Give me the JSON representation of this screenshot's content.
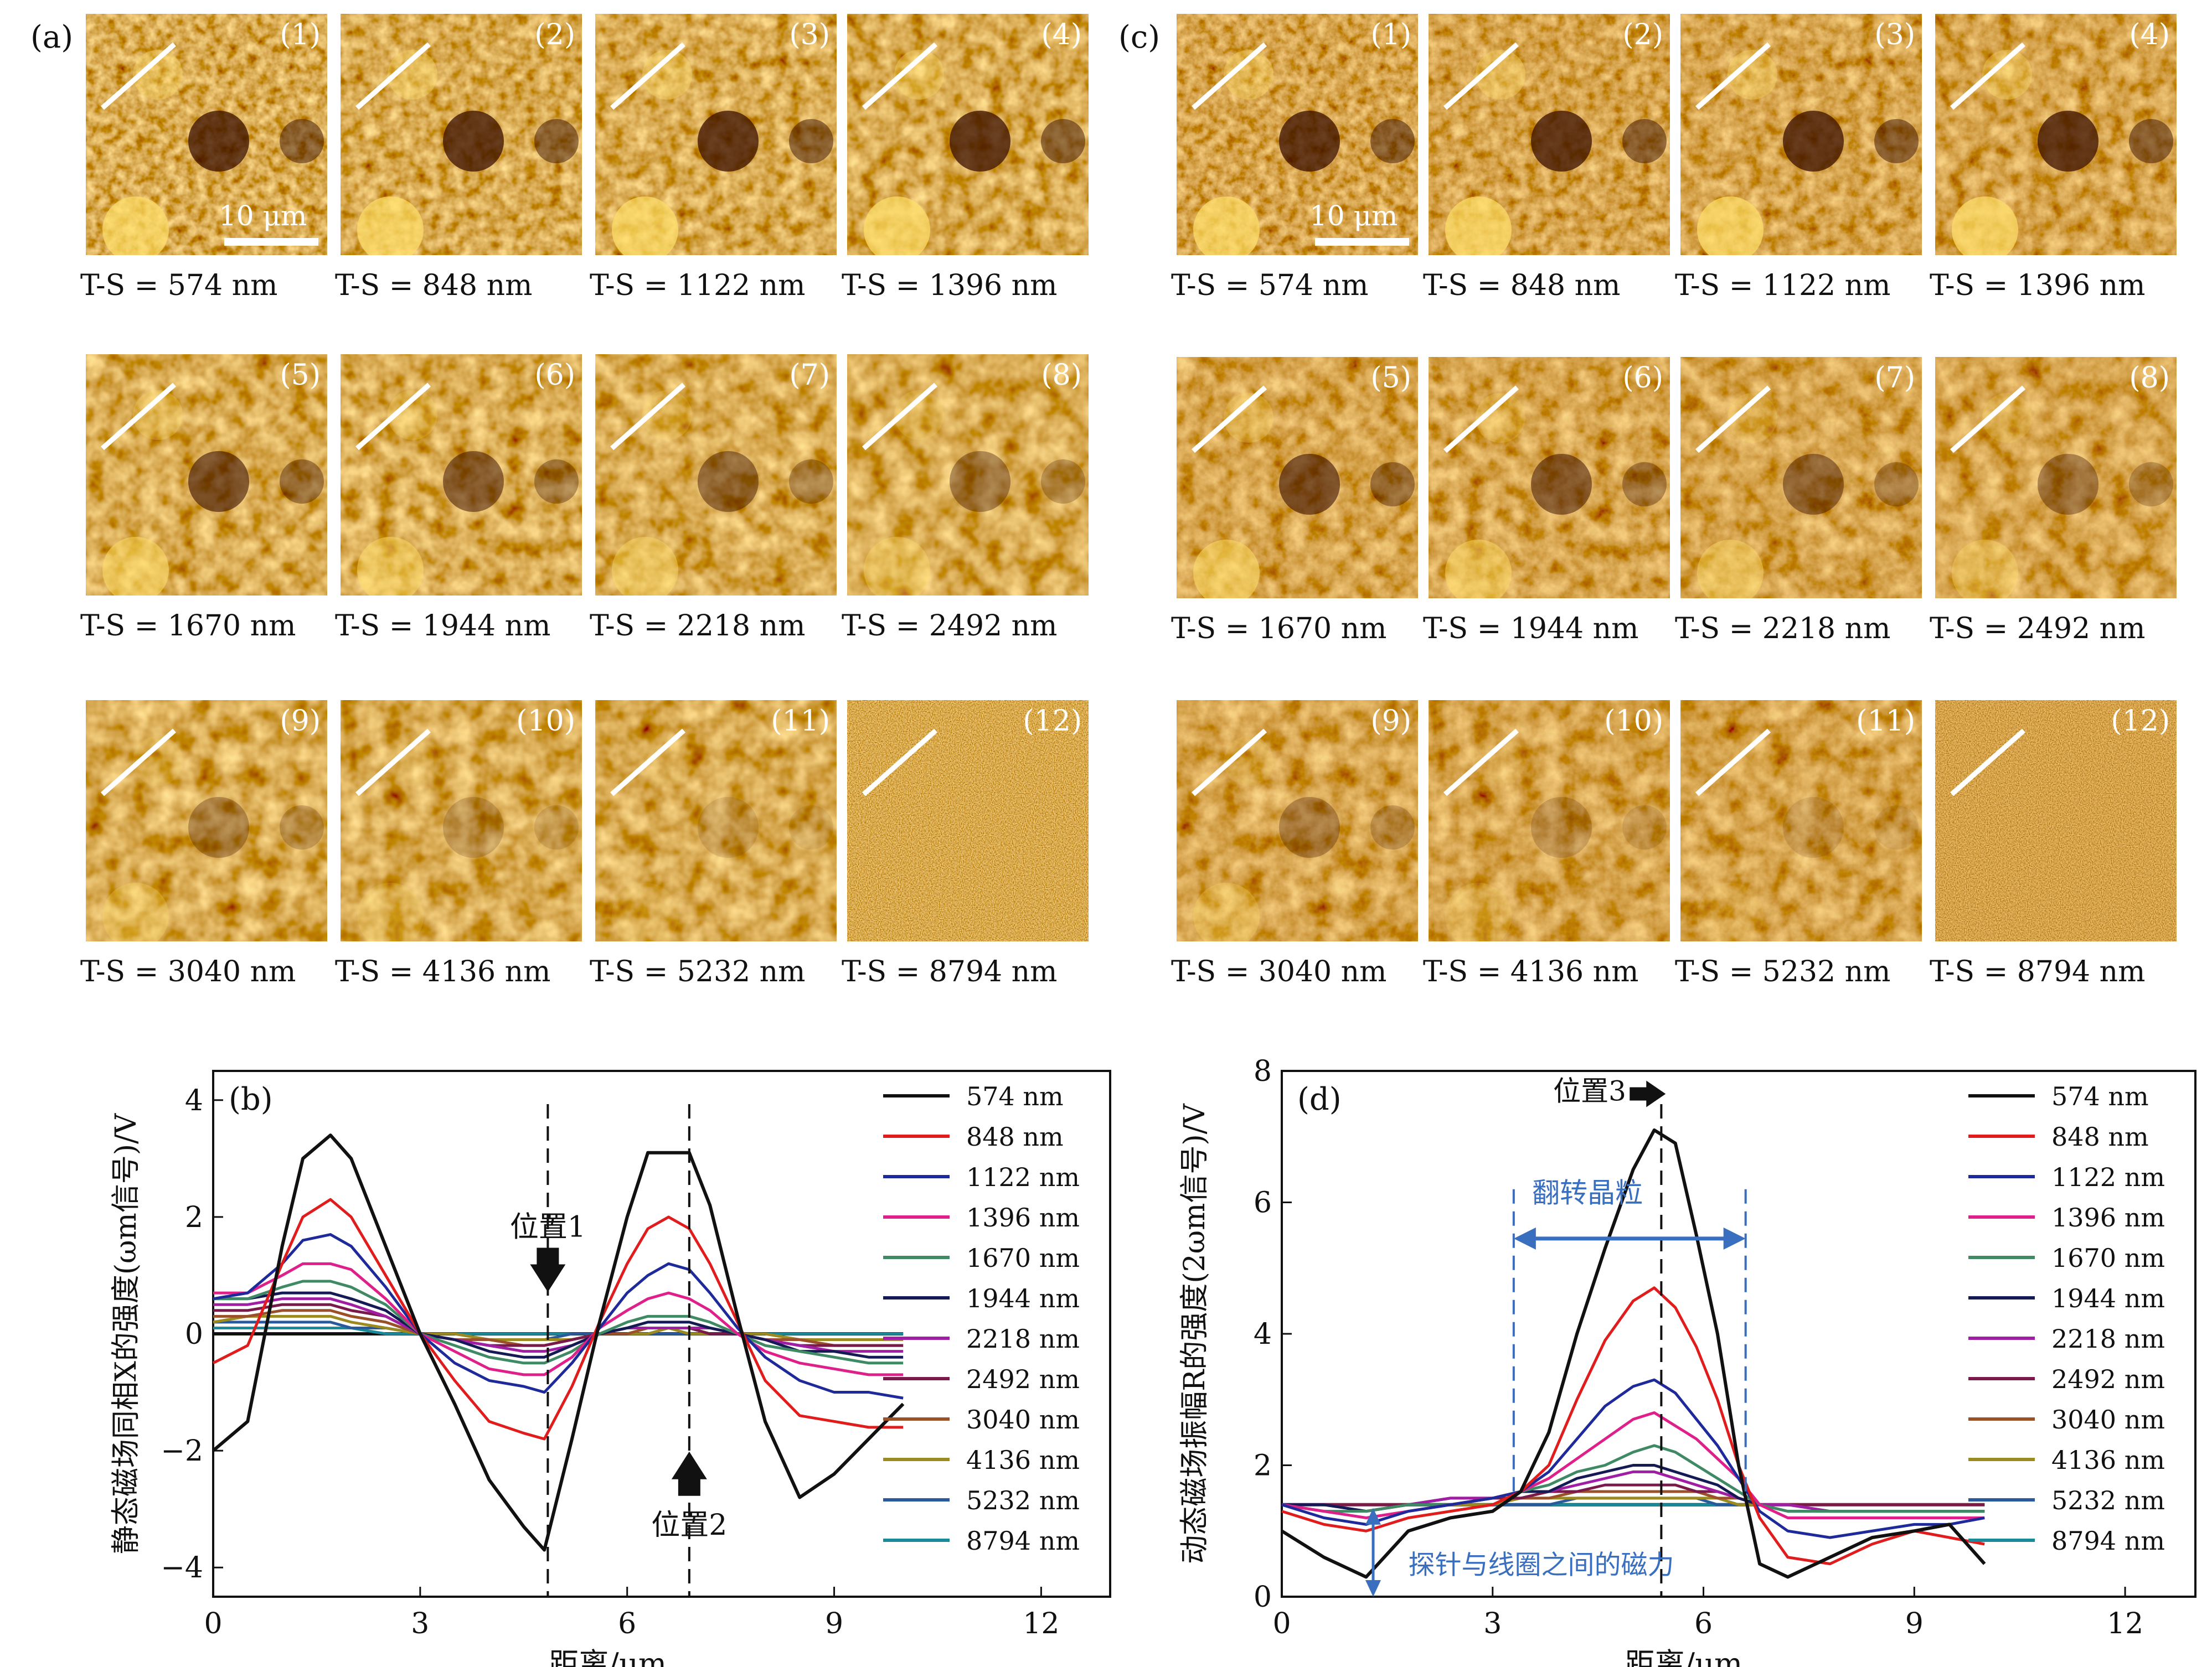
{
  "panels": {
    "a": "(a)",
    "b": "(b)",
    "c": "(c)",
    "d": "(d)"
  },
  "scale_bar": "10 μm",
  "tile_numbers": [
    "(1)",
    "(2)",
    "(3)",
    "(4)",
    "(5)",
    "(6)",
    "(7)",
    "(8)",
    "(9)",
    "(10)",
    "(11)",
    "(12)"
  ],
  "ts_labels": [
    "T-S = 574 nm",
    "T-S = 848 nm",
    "T-S = 1122 nm",
    "T-S = 1396 nm",
    "T-S = 1670 nm",
    "T-S = 1944 nm",
    "T-S = 2218 nm",
    "T-S = 2492 nm",
    "T-S = 3040 nm",
    "T-S = 4136 nm",
    "T-S = 5232 nm",
    "T-S = 8794 nm"
  ],
  "colors": {
    "afm_dark": "#3a0f00",
    "afm_mid": "#c0661a",
    "afm_bright": "#ffe06a",
    "annotation_blue": "#3a6fc0"
  },
  "legend": [
    "574 nm",
    "848 nm",
    "1122 nm",
    "1396 nm",
    "1670 nm",
    "1944 nm",
    "2218 nm",
    "2492 nm",
    "3040 nm",
    "4136 nm",
    "5232 nm",
    "8794 nm"
  ],
  "legend_colors": [
    "#111111",
    "#e11c1c",
    "#1f2a9a",
    "#e0208a",
    "#3f8a64",
    "#151a55",
    "#a01ea4",
    "#7a1a4a",
    "#9a5028",
    "#9a8a20",
    "#2a5a9a",
    "#1a8a9a"
  ],
  "annotations_b": {
    "pos1": "位置1",
    "pos2": "位置2"
  },
  "annotations_d": {
    "pos3": "位置3",
    "flip_grain": "翻转晶粒",
    "tip_force": "探针与线圈之间的磁力"
  },
  "chart_data": [
    {
      "type": "line",
      "panel": "(b)",
      "xlabel": "距离/μm",
      "ylabel": "静态磁场同相X的强度(ωm信号)/V",
      "xlim": [
        0,
        13
      ],
      "ylim": [
        -4.5,
        4.5
      ],
      "xticks": [
        0,
        3,
        6,
        9,
        12
      ],
      "yticks": [
        -4,
        -2,
        0,
        2,
        4
      ],
      "x": [
        0,
        0.5,
        1.0,
        1.3,
        1.7,
        2.0,
        2.5,
        3.0,
        3.5,
        4.0,
        4.5,
        4.8,
        5.2,
        5.6,
        6.0,
        6.3,
        6.6,
        6.9,
        7.2,
        7.6,
        8.0,
        8.5,
        9.0,
        9.5,
        10.0
      ],
      "series": [
        {
          "name": "574 nm",
          "values": [
            -2.0,
            -1.5,
            1.5,
            3.0,
            3.4,
            3.0,
            1.5,
            0.0,
            -1.2,
            -2.5,
            -3.3,
            -3.7,
            -1.8,
            0.2,
            2.0,
            3.1,
            3.1,
            3.1,
            2.2,
            0.3,
            -1.5,
            -2.8,
            -2.4,
            -1.8,
            -1.2
          ]
        },
        {
          "name": "848 nm",
          "values": [
            -0.5,
            -0.2,
            1.2,
            2.0,
            2.3,
            2.0,
            1.0,
            0.0,
            -0.8,
            -1.5,
            -1.7,
            -1.8,
            -0.9,
            0.2,
            1.2,
            1.8,
            2.0,
            1.8,
            1.2,
            0.2,
            -0.8,
            -1.4,
            -1.5,
            -1.6,
            -1.6
          ]
        },
        {
          "name": "1122 nm",
          "values": [
            0.6,
            0.7,
            1.2,
            1.6,
            1.7,
            1.5,
            0.8,
            0.0,
            -0.5,
            -0.8,
            -0.9,
            -1.0,
            -0.5,
            0.1,
            0.7,
            1.0,
            1.2,
            1.1,
            0.7,
            0.1,
            -0.4,
            -0.8,
            -1.0,
            -1.0,
            -1.1
          ]
        },
        {
          "name": "1396 nm",
          "values": [
            0.7,
            0.7,
            1.0,
            1.2,
            1.2,
            1.1,
            0.6,
            0.0,
            -0.3,
            -0.6,
            -0.7,
            -0.7,
            -0.4,
            0.1,
            0.4,
            0.6,
            0.7,
            0.6,
            0.4,
            0.0,
            -0.3,
            -0.5,
            -0.6,
            -0.7,
            -0.7
          ]
        },
        {
          "name": "1670 nm",
          "values": [
            0.6,
            0.6,
            0.8,
            0.9,
            0.9,
            0.8,
            0.5,
            0.0,
            -0.2,
            -0.4,
            -0.5,
            -0.5,
            -0.3,
            0.0,
            0.2,
            0.3,
            0.3,
            0.3,
            0.2,
            0.0,
            -0.2,
            -0.3,
            -0.4,
            -0.5,
            -0.5
          ]
        },
        {
          "name": "1944 nm",
          "values": [
            0.6,
            0.6,
            0.7,
            0.7,
            0.7,
            0.6,
            0.4,
            0.0,
            -0.1,
            -0.3,
            -0.4,
            -0.4,
            -0.2,
            0.0,
            0.1,
            0.2,
            0.2,
            0.2,
            0.1,
            0.0,
            -0.1,
            -0.3,
            -0.3,
            -0.4,
            -0.4
          ]
        },
        {
          "name": "2218 nm",
          "values": [
            0.5,
            0.5,
            0.6,
            0.6,
            0.6,
            0.5,
            0.3,
            0.0,
            -0.1,
            -0.2,
            -0.3,
            -0.3,
            -0.2,
            0.0,
            0.1,
            0.1,
            0.1,
            0.1,
            0.1,
            0.0,
            -0.1,
            -0.2,
            -0.3,
            -0.3,
            -0.3
          ]
        },
        {
          "name": "2492 nm",
          "values": [
            0.4,
            0.4,
            0.5,
            0.5,
            0.5,
            0.4,
            0.3,
            0.0,
            -0.1,
            -0.2,
            -0.2,
            -0.2,
            -0.1,
            0.0,
            0.1,
            0.1,
            0.1,
            0.1,
            0.0,
            0.0,
            -0.1,
            -0.2,
            -0.2,
            -0.2,
            -0.2
          ]
        },
        {
          "name": "3040 nm",
          "values": [
            0.3,
            0.3,
            0.4,
            0.4,
            0.4,
            0.3,
            0.2,
            0.0,
            -0.1,
            -0.1,
            -0.2,
            -0.2,
            -0.1,
            0.0,
            0.0,
            0.1,
            0.1,
            0.1,
            0.0,
            0.0,
            -0.1,
            -0.1,
            -0.2,
            -0.2,
            -0.2
          ]
        },
        {
          "name": "4136 nm",
          "values": [
            0.2,
            0.3,
            0.3,
            0.3,
            0.3,
            0.2,
            0.1,
            0.0,
            0.0,
            -0.1,
            -0.1,
            -0.1,
            -0.1,
            0.0,
            0.0,
            0.0,
            0.1,
            0.0,
            0.0,
            0.0,
            0.0,
            -0.1,
            -0.1,
            -0.1,
            -0.1
          ]
        },
        {
          "name": "5232 nm",
          "values": [
            0.2,
            0.2,
            0.2,
            0.2,
            0.2,
            0.1,
            0.1,
            0.0,
            0.0,
            -0.1,
            -0.1,
            -0.1,
            0.0,
            0.0,
            0.0,
            0.0,
            0.0,
            0.0,
            0.0,
            0.0,
            0.0,
            -0.1,
            -0.1,
            -0.1,
            -0.1
          ]
        },
        {
          "name": "8794 nm",
          "values": [
            0.1,
            0.1,
            0.1,
            0.1,
            0.1,
            0.1,
            0.0,
            0.0,
            0.0,
            0.0,
            0.0,
            0.0,
            0.0,
            0.0,
            0.0,
            0.0,
            0.0,
            0.0,
            0.0,
            0.0,
            0.0,
            0.0,
            0.0,
            0.0,
            0.0
          ]
        }
      ],
      "reference_lines": [
        {
          "x": 4.85
        },
        {
          "x": 6.9
        }
      ]
    },
    {
      "type": "line",
      "panel": "(d)",
      "xlabel": "距离/μm",
      "ylabel": "动态磁场振幅R的强度(2ωm信号)/V",
      "xlim": [
        0,
        13
      ],
      "ylim": [
        0,
        8
      ],
      "xticks": [
        0,
        3,
        6,
        9,
        12
      ],
      "yticks": [
        0,
        2,
        4,
        6,
        8
      ],
      "x": [
        0,
        0.6,
        1.2,
        1.8,
        2.4,
        3.0,
        3.4,
        3.8,
        4.2,
        4.6,
        5.0,
        5.3,
        5.6,
        5.9,
        6.2,
        6.5,
        6.8,
        7.2,
        7.8,
        8.4,
        9.0,
        9.5,
        10.0
      ],
      "series": [
        {
          "name": "574 nm",
          "values": [
            1.0,
            0.6,
            0.3,
            1.0,
            1.2,
            1.3,
            1.6,
            2.5,
            4.0,
            5.3,
            6.5,
            7.1,
            6.9,
            5.5,
            4.0,
            2.0,
            0.5,
            0.3,
            0.6,
            0.9,
            1.0,
            1.1,
            0.5
          ]
        },
        {
          "name": "848 nm",
          "values": [
            1.3,
            1.1,
            1.0,
            1.2,
            1.3,
            1.4,
            1.6,
            2.0,
            3.0,
            3.9,
            4.5,
            4.7,
            4.4,
            3.8,
            3.0,
            2.0,
            1.2,
            0.6,
            0.5,
            0.8,
            1.0,
            0.9,
            0.8
          ]
        },
        {
          "name": "1122 nm",
          "values": [
            1.4,
            1.2,
            1.1,
            1.3,
            1.4,
            1.5,
            1.6,
            1.9,
            2.4,
            2.9,
            3.2,
            3.3,
            3.1,
            2.7,
            2.3,
            1.8,
            1.3,
            1.0,
            0.9,
            1.0,
            1.1,
            1.1,
            1.2
          ]
        },
        {
          "name": "1396 nm",
          "values": [
            1.4,
            1.3,
            1.2,
            1.3,
            1.4,
            1.5,
            1.6,
            1.8,
            2.1,
            2.4,
            2.7,
            2.8,
            2.6,
            2.4,
            2.1,
            1.8,
            1.4,
            1.2,
            1.2,
            1.2,
            1.2,
            1.2,
            1.2
          ]
        },
        {
          "name": "1670 nm",
          "values": [
            1.4,
            1.3,
            1.3,
            1.4,
            1.4,
            1.5,
            1.6,
            1.7,
            1.9,
            2.0,
            2.2,
            2.3,
            2.2,
            2.0,
            1.8,
            1.6,
            1.4,
            1.3,
            1.3,
            1.3,
            1.3,
            1.3,
            1.3
          ]
        },
        {
          "name": "1944 nm",
          "values": [
            1.4,
            1.4,
            1.3,
            1.4,
            1.4,
            1.5,
            1.6,
            1.6,
            1.8,
            1.9,
            2.0,
            2.0,
            1.9,
            1.8,
            1.7,
            1.5,
            1.4,
            1.3,
            1.3,
            1.3,
            1.3,
            1.3,
            1.3
          ]
        },
        {
          "name": "2218 nm",
          "values": [
            1.4,
            1.4,
            1.3,
            1.4,
            1.5,
            1.5,
            1.6,
            1.6,
            1.7,
            1.8,
            1.9,
            1.9,
            1.8,
            1.7,
            1.6,
            1.5,
            1.4,
            1.4,
            1.3,
            1.3,
            1.3,
            1.3,
            1.3
          ]
        },
        {
          "name": "2492 nm",
          "values": [
            1.4,
            1.4,
            1.4,
            1.4,
            1.5,
            1.5,
            1.5,
            1.6,
            1.6,
            1.7,
            1.7,
            1.7,
            1.7,
            1.6,
            1.6,
            1.5,
            1.4,
            1.4,
            1.4,
            1.4,
            1.4,
            1.4,
            1.4
          ]
        },
        {
          "name": "3040 nm",
          "values": [
            1.4,
            1.4,
            1.4,
            1.4,
            1.4,
            1.5,
            1.5,
            1.5,
            1.6,
            1.6,
            1.6,
            1.6,
            1.6,
            1.6,
            1.5,
            1.5,
            1.4,
            1.4,
            1.4,
            1.4,
            1.4,
            1.4,
            1.4
          ]
        },
        {
          "name": "4136 nm",
          "values": [
            1.4,
            1.4,
            1.4,
            1.4,
            1.4,
            1.4,
            1.5,
            1.5,
            1.5,
            1.5,
            1.5,
            1.5,
            1.5,
            1.5,
            1.5,
            1.4,
            1.4,
            1.4,
            1.4,
            1.4,
            1.4,
            1.4,
            1.4
          ]
        },
        {
          "name": "5232 nm",
          "values": [
            1.4,
            1.4,
            1.4,
            1.4,
            1.4,
            1.4,
            1.4,
            1.4,
            1.5,
            1.5,
            1.5,
            1.5,
            1.5,
            1.5,
            1.4,
            1.4,
            1.4,
            1.4,
            1.4,
            1.4,
            1.4,
            1.4,
            1.4
          ]
        },
        {
          "name": "8794 nm",
          "values": [
            1.4,
            1.4,
            1.4,
            1.4,
            1.4,
            1.4,
            1.4,
            1.4,
            1.4,
            1.4,
            1.4,
            1.4,
            1.4,
            1.4,
            1.4,
            1.4,
            1.4,
            1.4,
            1.4,
            1.4,
            1.4,
            1.4,
            1.4
          ]
        }
      ],
      "reference_lines": [
        {
          "x": 5.4
        },
        {
          "x": 3.3
        },
        {
          "x": 6.6
        }
      ]
    }
  ]
}
